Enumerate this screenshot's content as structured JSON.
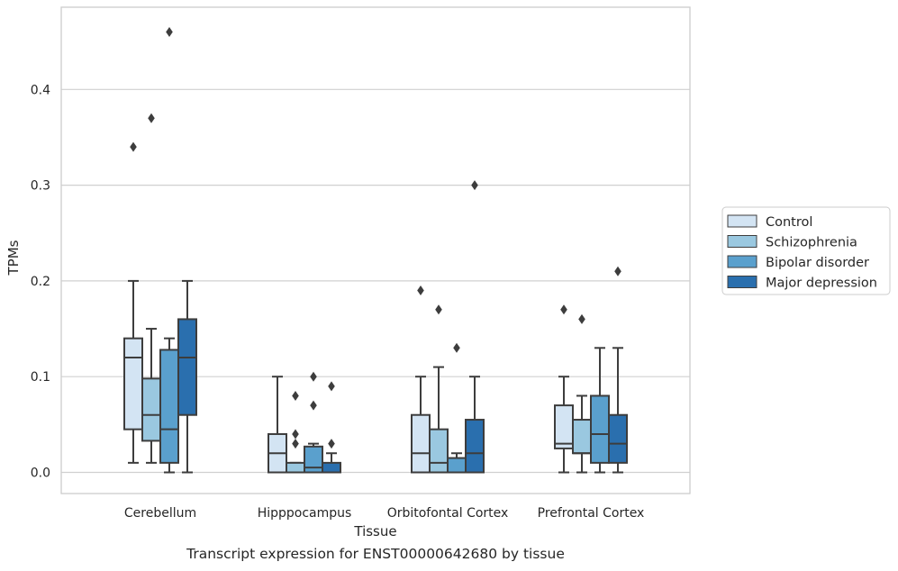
{
  "caption": "Transcript expression for ENST00000642680 by tissue",
  "chart_data": {
    "type": "boxplot",
    "xlabel": "Tissue",
    "ylabel": "TPMs",
    "ylim": [
      -0.022,
      0.485
    ],
    "yticks": [
      "0.0",
      "0.1",
      "0.2",
      "0.3",
      "0.4"
    ],
    "ytick_values": [
      0,
      0.1,
      0.2,
      0.3,
      0.4
    ],
    "grid": "horizontal",
    "legend_position": "right",
    "categories": [
      "Cerebellum",
      "Hipppocampus",
      "Orbitofontal Cortex",
      "Prefrontal Cortex"
    ],
    "series": [
      {
        "name": "Control",
        "color": "#d3e4f3",
        "boxes": [
          {
            "whislo": 0.01,
            "q1": 0.045,
            "med": 0.12,
            "q3": 0.14,
            "whishi": 0.2,
            "fliers": [
              0.34
            ]
          },
          {
            "whislo": 0,
            "q1": 0,
            "med": 0.02,
            "q3": 0.04,
            "whishi": 0.1,
            "fliers": []
          },
          {
            "whislo": 0,
            "q1": 0,
            "med": 0.02,
            "q3": 0.06,
            "whishi": 0.1,
            "fliers": [
              0.19
            ]
          },
          {
            "whislo": 0,
            "q1": 0.025,
            "med": 0.03,
            "q3": 0.07,
            "whishi": 0.1,
            "fliers": [
              0.17
            ]
          }
        ]
      },
      {
        "name": "Schizophrenia",
        "color": "#9ac8e0",
        "boxes": [
          {
            "whislo": 0.01,
            "q1": 0.033,
            "med": 0.06,
            "q3": 0.098,
            "whishi": 0.15,
            "fliers": [
              0.37
            ]
          },
          {
            "whislo": 0,
            "q1": 0,
            "med": 0,
            "q3": 0.01,
            "whishi": 0.01,
            "fliers": [
              0.03,
              0.04,
              0.08
            ]
          },
          {
            "whislo": 0,
            "q1": 0,
            "med": 0.01,
            "q3": 0.045,
            "whishi": 0.11,
            "fliers": [
              0.17
            ]
          },
          {
            "whislo": 0,
            "q1": 0.02,
            "med": 0.02,
            "q3": 0.055,
            "whishi": 0.08,
            "fliers": [
              0.16
            ]
          }
        ]
      },
      {
        "name": "Bipolar disorder",
        "color": "#5aa0cd",
        "boxes": [
          {
            "whislo": 0,
            "q1": 0.01,
            "med": 0.045,
            "q3": 0.128,
            "whishi": 0.14,
            "fliers": [
              0.46
            ]
          },
          {
            "whislo": 0,
            "q1": 0,
            "med": 0.005,
            "q3": 0.027,
            "whishi": 0.03,
            "fliers": [
              0.07,
              0.1
            ]
          },
          {
            "whislo": 0,
            "q1": 0,
            "med": 0,
            "q3": 0.015,
            "whishi": 0.02,
            "fliers": [
              0.13
            ]
          },
          {
            "whislo": 0,
            "q1": 0.01,
            "med": 0.04,
            "q3": 0.08,
            "whishi": 0.13,
            "fliers": []
          }
        ]
      },
      {
        "name": "Major depression",
        "color": "#2a6fae",
        "boxes": [
          {
            "whislo": 0,
            "q1": 0.06,
            "med": 0.12,
            "q3": 0.16,
            "whishi": 0.2,
            "fliers": []
          },
          {
            "whislo": 0,
            "q1": 0,
            "med": 0,
            "q3": 0.01,
            "whishi": 0.02,
            "fliers": [
              0.03,
              0.09
            ]
          },
          {
            "whislo": 0,
            "q1": 0,
            "med": 0.02,
            "q3": 0.055,
            "whishi": 0.1,
            "fliers": [
              0.3
            ]
          },
          {
            "whislo": 0,
            "q1": 0.01,
            "med": 0.03,
            "q3": 0.06,
            "whishi": 0.13,
            "fliers": [
              0.21
            ]
          }
        ]
      }
    ]
  }
}
